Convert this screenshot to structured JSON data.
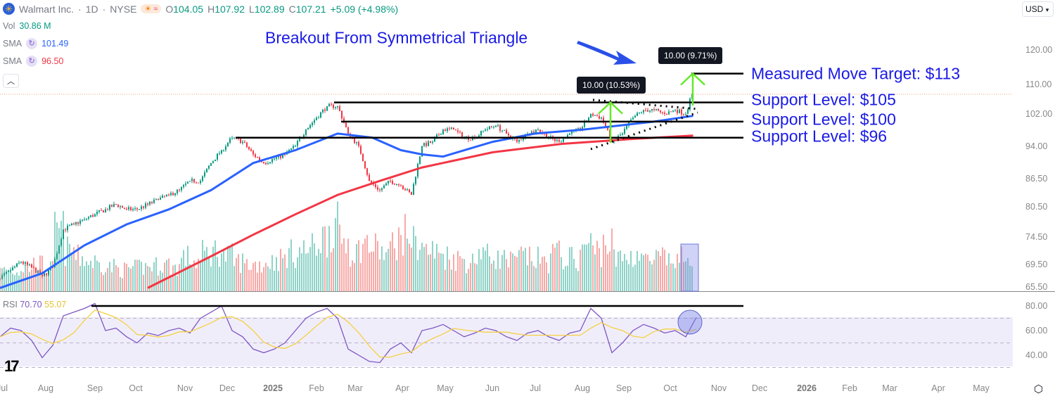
{
  "header": {
    "company": "Walmart Inc.",
    "interval": "1D",
    "exchange": "NYSE",
    "open_label": "O",
    "open": "104.05",
    "high_label": "H",
    "high": "107.92",
    "low_label": "L",
    "low": "102.89",
    "close_label": "C",
    "close": "107.21",
    "change": "+5.09 (+4.98%)"
  },
  "indicators": {
    "vol_label": "Vol",
    "vol": "30.86 M",
    "sma1_label": "SMA",
    "sma1": "101.49",
    "sma2_label": "SMA",
    "sma2": "96.50",
    "rsi_label": "RSI",
    "rsi": "70.70",
    "rsi_ma": "55.07"
  },
  "currency": "USD",
  "colors": {
    "up": "#089981",
    "down": "#f23645",
    "sma50": "#2962ff",
    "sma200": "#f23645",
    "annotation": "#1a1ae6",
    "arrow": "#66e82a",
    "rsi": "#7e57c2",
    "rsi_ma": "#f5d142"
  },
  "chart_data": {
    "type": "candlestick",
    "y_scale": "log",
    "ylim": [
      65.5,
      125
    ],
    "y_ticks": [
      "120.00",
      "110.00",
      "102.00",
      "94.00",
      "86.50",
      "80.50",
      "74.50",
      "69.50",
      "65.50"
    ],
    "x_ticks": [
      "Jul",
      "Aug",
      "Sep",
      "Oct",
      "Nov",
      "Dec",
      "2025",
      "Feb",
      "Mar",
      "Apr",
      "May",
      "Jun",
      "Jul",
      "Aug",
      "Sep",
      "Oct",
      "Nov",
      "Dec",
      "2026",
      "Feb",
      "Mar",
      "Apr",
      "May"
    ],
    "weekly_close": [
      67,
      68.5,
      70,
      69,
      67.5,
      69,
      76,
      77,
      78,
      79,
      80,
      81,
      80,
      80,
      81,
      82,
      83,
      84,
      86,
      86,
      90,
      93,
      96,
      95,
      92,
      90,
      91,
      92,
      94,
      98,
      101,
      104,
      104,
      97,
      94,
      86,
      84,
      86,
      85,
      83,
      94,
      95,
      98,
      98,
      96,
      96,
      98,
      99,
      97,
      95,
      97,
      98,
      96,
      95,
      97,
      98,
      102,
      101,
      95,
      97,
      101,
      103,
      103,
      102,
      103,
      102,
      107.21
    ],
    "weekly_volume_m": [
      18,
      17,
      16,
      18,
      20,
      17,
      45,
      30,
      25,
      22,
      20,
      18,
      16,
      17,
      18,
      19,
      20,
      18,
      25,
      22,
      28,
      30,
      26,
      22,
      20,
      20,
      22,
      24,
      28,
      30,
      32,
      40,
      48,
      38,
      30,
      35,
      32,
      28,
      38,
      42,
      36,
      30,
      28,
      26,
      24,
      22,
      30,
      26,
      24,
      22,
      26,
      24,
      22,
      28,
      25,
      24,
      35,
      30,
      36,
      24,
      26,
      28,
      22,
      24,
      22,
      24,
      30.86
    ],
    "weekly_rsi": [
      55,
      62,
      60,
      52,
      38,
      48,
      72,
      75,
      78,
      82,
      60,
      62,
      55,
      50,
      58,
      56,
      60,
      62,
      58,
      70,
      75,
      80,
      60,
      55,
      45,
      42,
      45,
      50,
      60,
      70,
      75,
      78,
      70,
      45,
      40,
      35,
      34,
      45,
      50,
      42,
      60,
      62,
      65,
      60,
      55,
      58,
      62,
      60,
      55,
      52,
      58,
      60,
      55,
      52,
      58,
      60,
      78,
      70,
      42,
      50,
      60,
      65,
      62,
      58,
      60,
      55,
      70.7
    ],
    "sma50_points": [
      [
        0,
        65.5
      ],
      [
        4,
        68
      ],
      [
        8,
        73
      ],
      [
        12,
        77
      ],
      [
        16,
        80
      ],
      [
        20,
        84
      ],
      [
        24,
        90
      ],
      [
        28,
        93
      ],
      [
        32,
        97
      ],
      [
        35.3,
        96
      ],
      [
        38,
        93
      ],
      [
        40,
        92
      ],
      [
        42,
        91.5
      ],
      [
        46.7,
        95
      ],
      [
        50.7,
        97
      ],
      [
        55.3,
        98
      ],
      [
        58.7,
        99
      ],
      [
        62,
        100
      ],
      [
        65.7,
        101.49
      ]
    ],
    "sma200_points": [
      [
        14,
        65.5
      ],
      [
        20,
        71
      ],
      [
        24,
        75
      ],
      [
        28,
        79
      ],
      [
        32,
        83
      ],
      [
        36,
        86
      ],
      [
        40,
        89
      ],
      [
        46.7,
        92.5
      ],
      [
        53.3,
        94.5
      ],
      [
        60,
        95.7
      ],
      [
        65.7,
        96.5
      ]
    ],
    "rsi_levels": [
      70,
      50,
      30
    ],
    "current_price": 107.21
  },
  "annotations": {
    "title": "Breakout From Symmetrical Triangle",
    "target": "Measured Move Target: $113",
    "target_price": 113,
    "support1": "Support Level: $105",
    "support1_price": 105,
    "support2": "Support Level: $100",
    "support2_price": 100,
    "support3": "Support Level: $96",
    "support3_price": 96,
    "move1": "10.00 (10.53%)",
    "move2": "10.00 (9.71%)",
    "rsi_line": 80
  }
}
